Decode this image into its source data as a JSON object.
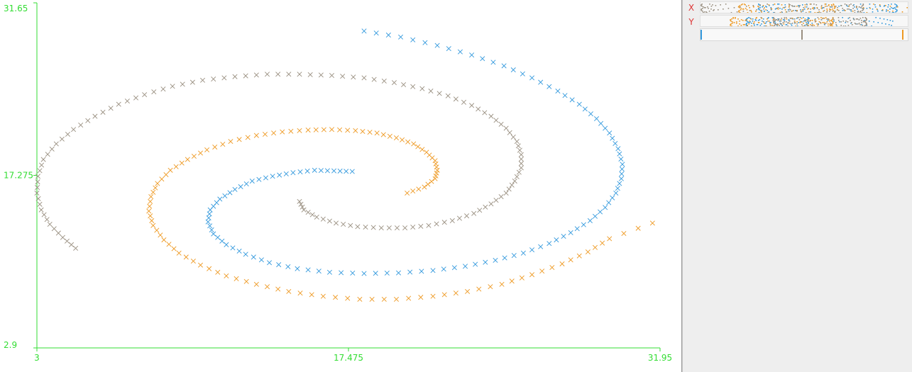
{
  "chart_data": {
    "type": "scatter",
    "marker": "x",
    "xlim": [
      3,
      31.95
    ],
    "ylim": [
      2.9,
      31.65
    ],
    "x_ticks": [
      "3",
      "17.475",
      "31.95"
    ],
    "y_ticks": [
      "31.65",
      "17.275",
      "2.9"
    ],
    "axis_color": "#33dd33",
    "grid": false,
    "series": [
      {
        "color": "#3399dd",
        "spirals": {
          "cx": 17.5,
          "cy": 17.0,
          "theta_start": 1.58,
          "theta_end": 8.06,
          "r0": 0.35,
          "r_per_rad": 1.95,
          "x_scale": 1.05,
          "y_scale": 0.95
        },
        "points": [
          [
            17.65,
            17.6
          ],
          [
            16.8,
            17.65
          ],
          [
            15.9,
            17.7
          ],
          [
            14.9,
            17.5
          ],
          [
            13.95,
            17.2
          ],
          [
            13.0,
            16.8
          ],
          [
            12.2,
            16.1
          ],
          [
            11.5,
            15.3
          ],
          [
            11.05,
            14.4
          ],
          [
            10.95,
            13.4
          ],
          [
            11.2,
            12.4
          ],
          [
            11.8,
            11.5
          ],
          [
            12.7,
            10.7
          ],
          [
            13.8,
            10.0
          ],
          [
            15.1,
            9.5
          ],
          [
            16.6,
            9.2
          ],
          [
            18.2,
            9.1
          ],
          [
            19.8,
            9.15
          ],
          [
            21.4,
            9.35
          ],
          [
            22.9,
            9.7
          ],
          [
            24.3,
            10.2
          ],
          [
            25.6,
            10.8
          ],
          [
            26.8,
            11.6
          ],
          [
            27.8,
            12.5
          ],
          [
            28.7,
            13.5
          ],
          [
            29.4,
            14.6
          ],
          [
            29.9,
            15.8
          ],
          [
            30.15,
            17.0
          ],
          [
            30.2,
            18.2
          ],
          [
            30.0,
            19.5
          ],
          [
            29.6,
            20.8
          ],
          [
            29.0,
            22.0
          ],
          [
            28.2,
            23.2
          ],
          [
            27.2,
            24.3
          ],
          [
            26.0,
            25.4
          ],
          [
            24.7,
            26.4
          ],
          [
            23.2,
            27.3
          ],
          [
            21.6,
            28.1
          ],
          [
            19.9,
            28.8
          ],
          [
            18.2,
            29.3
          ]
        ]
      },
      {
        "color": "#ee9922",
        "spirals": {
          "cx": 17.4,
          "cy": 17.0,
          "theta_start": 0.1,
          "theta_end": 6.8,
          "r0": 0.6,
          "r_per_rad": 1.9,
          "x_scale": 1.0,
          "y_scale": 1.0
        },
        "points": [
          [
            20.2,
            15.8
          ],
          [
            21.0,
            16.3
          ],
          [
            21.5,
            17.0
          ],
          [
            21.6,
            17.7
          ],
          [
            21.5,
            18.5
          ],
          [
            21.1,
            19.2
          ],
          [
            20.5,
            19.9
          ],
          [
            19.7,
            20.4
          ],
          [
            18.8,
            20.8
          ],
          [
            17.8,
            21.0
          ],
          [
            16.7,
            21.1
          ],
          [
            15.6,
            21.05
          ],
          [
            14.4,
            20.9
          ],
          [
            13.2,
            20.6
          ],
          [
            12.0,
            20.1
          ],
          [
            10.9,
            19.4
          ],
          [
            10.0,
            18.6
          ],
          [
            9.2,
            17.7
          ],
          [
            8.6,
            16.6
          ],
          [
            8.3,
            15.5
          ],
          [
            8.2,
            14.3
          ],
          [
            8.4,
            13.1
          ],
          [
            8.9,
            11.9
          ],
          [
            9.6,
            10.8
          ],
          [
            10.6,
            9.8
          ],
          [
            11.8,
            8.9
          ],
          [
            13.2,
            8.2
          ],
          [
            14.7,
            7.6
          ],
          [
            16.3,
            7.2
          ],
          [
            18.0,
            6.95
          ],
          [
            19.7,
            6.95
          ],
          [
            21.4,
            7.2
          ],
          [
            23.0,
            7.6
          ],
          [
            24.6,
            8.2
          ],
          [
            26.0,
            9.0
          ],
          [
            27.4,
            9.9
          ],
          [
            28.6,
            10.9
          ],
          [
            29.6,
            12.0
          ],
          [
            31.6,
            13.3
          ]
        ]
      },
      {
        "color": "#998f80",
        "spirals": {
          "cx": 17.6,
          "cy": 17.5,
          "theta_start": 3.1,
          "theta_end": 9.9,
          "r0": 0.5,
          "r_per_rad": 1.95,
          "x_scale": 1.0,
          "y_scale": 1.0
        },
        "points": [
          [
            15.2,
            15.1
          ],
          [
            15.4,
            14.4
          ],
          [
            16.0,
            13.8
          ],
          [
            16.9,
            13.3
          ],
          [
            17.9,
            13.0
          ],
          [
            19.0,
            12.9
          ],
          [
            20.1,
            12.9
          ],
          [
            21.2,
            13.1
          ],
          [
            22.3,
            13.5
          ],
          [
            23.3,
            14.1
          ],
          [
            24.1,
            14.9
          ],
          [
            24.8,
            15.8
          ],
          [
            25.2,
            16.8
          ],
          [
            25.5,
            17.9
          ],
          [
            25.5,
            19.0
          ],
          [
            25.3,
            20.1
          ],
          [
            24.8,
            21.2
          ],
          [
            24.1,
            22.2
          ],
          [
            23.2,
            23.1
          ],
          [
            22.1,
            23.9
          ],
          [
            20.9,
            24.5
          ],
          [
            19.6,
            25.0
          ],
          [
            18.2,
            25.4
          ],
          [
            16.7,
            25.6
          ],
          [
            15.2,
            25.7
          ],
          [
            13.7,
            25.7
          ],
          [
            12.2,
            25.5
          ],
          [
            10.7,
            25.2
          ],
          [
            9.3,
            24.7
          ],
          [
            8.0,
            24.0
          ],
          [
            6.8,
            23.2
          ],
          [
            5.7,
            22.2
          ],
          [
            4.7,
            21.1
          ],
          [
            3.9,
            19.9
          ],
          [
            3.3,
            18.6
          ],
          [
            3.05,
            17.2
          ],
          [
            3.0,
            15.8
          ],
          [
            3.2,
            14.4
          ],
          [
            3.6,
            13.2
          ],
          [
            4.2,
            12.1
          ],
          [
            4.8,
            11.2
          ]
        ]
      }
    ]
  },
  "side_panel": {
    "x_tag": "X",
    "y_tag": "Y",
    "tag_color": "#dd3333",
    "series_colors": [
      "#3399dd",
      "#998f80",
      "#ee9922"
    ],
    "series_marks": [
      0.0,
      0.49,
      0.98
    ]
  }
}
